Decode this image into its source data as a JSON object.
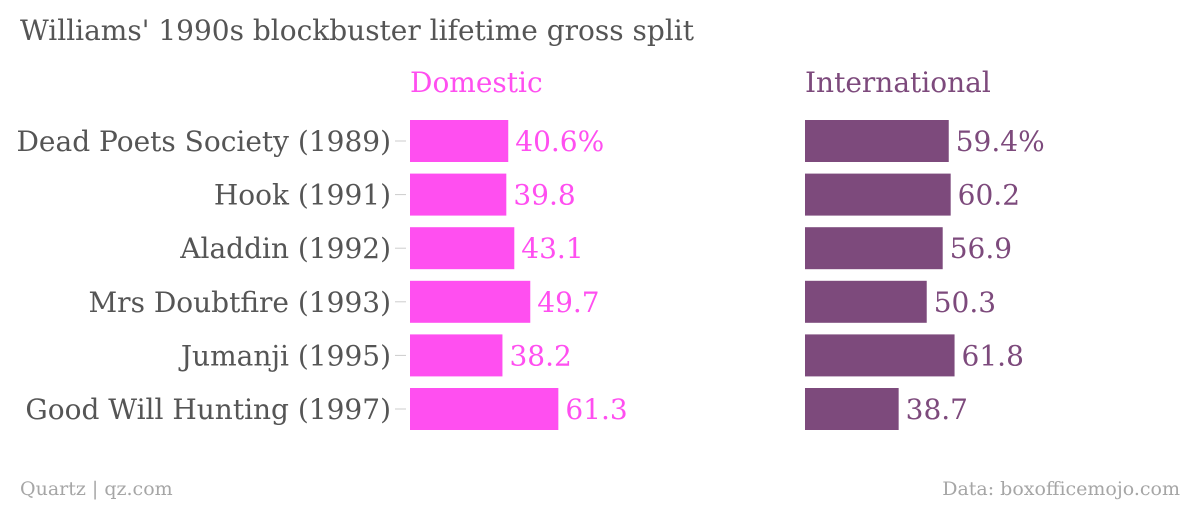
{
  "title": "Williams' 1990s blockbuster lifetime gross split",
  "footer": {
    "source_left": "Quartz | qz.com",
    "source_right": "Data: boxofficemojo.com"
  },
  "colors": {
    "domestic": "#ff4ff0",
    "international": "#7d4a7c",
    "label": "#555555",
    "footer": "#a6a6a6"
  },
  "chart_data": {
    "type": "bar",
    "categories": [
      "Dead Poets Society (1989)",
      "Hook (1991)",
      "Aladdin (1992)",
      "Mrs Doubtfire (1993)",
      "Jumanji (1995)",
      "Good Will Hunting (1997)"
    ],
    "series": [
      {
        "name": "Domestic",
        "values": [
          40.6,
          39.8,
          43.1,
          49.7,
          38.2,
          61.3
        ],
        "labels": [
          "40.6%",
          "39.8",
          "43.1",
          "49.7",
          "38.2",
          "61.3"
        ]
      },
      {
        "name": "International",
        "values": [
          59.4,
          60.2,
          56.9,
          50.3,
          61.8,
          38.7
        ],
        "labels": [
          "59.4%",
          "60.2",
          "56.9",
          "50.3",
          "61.8",
          "38.7"
        ]
      }
    ],
    "xlim": [
      0,
      100
    ],
    "grid": false,
    "legend": "panel headers"
  }
}
